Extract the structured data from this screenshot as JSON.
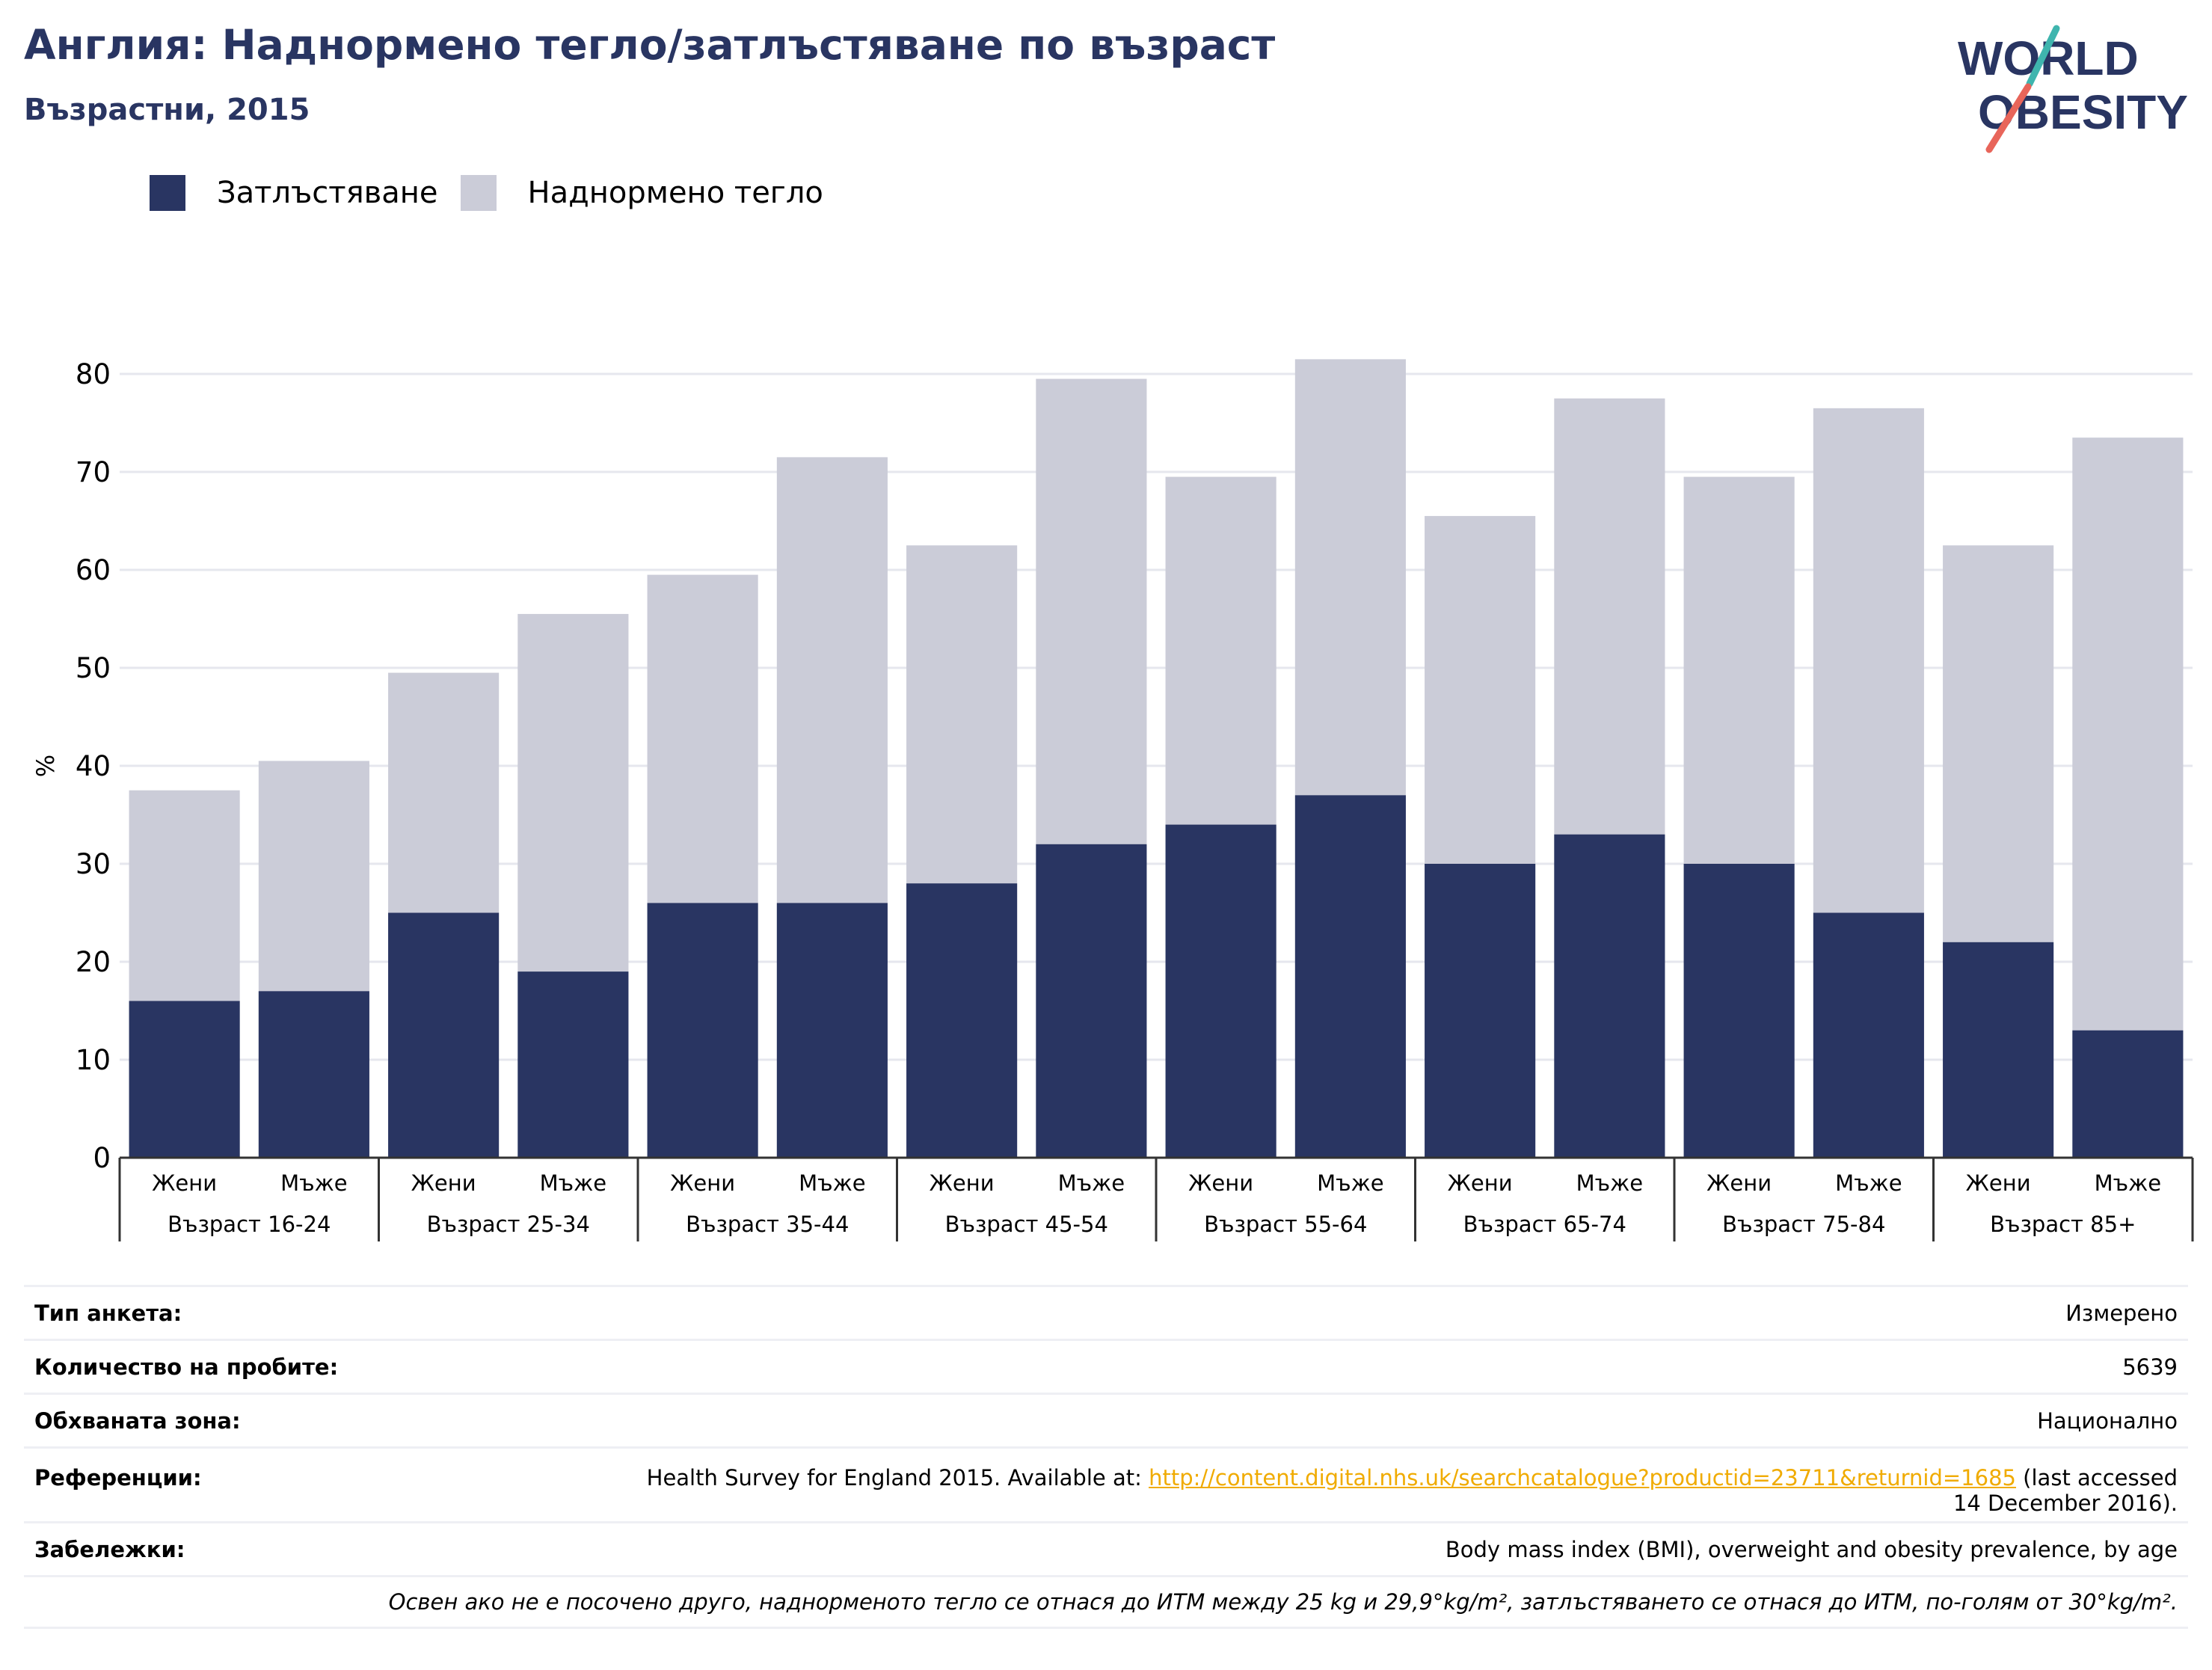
{
  "header": {
    "title": "Англия: Наднормено тегло/затлъстяване по възраст",
    "subtitle": "Възрастни, 2015"
  },
  "logo": {
    "line1": "WORLD",
    "line2": "OBESITY"
  },
  "colors": {
    "obesity": "#293562",
    "overweight": "#cbccd8",
    "title": "#293562",
    "link": "#f0ab00",
    "grid": "#e6e7ee",
    "logo_teal": "#3fb5ae",
    "logo_coral": "#e8655a"
  },
  "legend": {
    "obesity_label": "Затлъстяване",
    "overweight_label": "Наднормено тегло"
  },
  "chart_data": {
    "type": "bar",
    "stacked": true,
    "ylabel": "%",
    "ylim": [
      0,
      80
    ],
    "yticks": [
      0,
      10,
      20,
      30,
      40,
      50,
      60,
      70,
      80
    ],
    "grid": true,
    "legend_position": "top-left",
    "categories": [
      "Жени",
      "Мъже",
      "Жени",
      "Мъже",
      "Жени",
      "Мъже",
      "Жени",
      "Мъже",
      "Жени",
      "Мъже",
      "Жени",
      "Мъже",
      "Жени",
      "Мъже",
      "Жени",
      "Мъже"
    ],
    "groups": [
      "Възраст 16-24",
      "Възраст 25-34",
      "Възраст 35-44",
      "Възраст 45-54",
      "Възраст 55-64",
      "Възраст 65-74",
      "Възраст 75-84",
      "Възраст 85+"
    ],
    "series": [
      {
        "name": "Затлъстяване",
        "values": [
          16,
          17,
          25,
          19,
          26,
          26,
          28,
          32,
          34,
          37,
          30,
          33,
          30,
          25,
          22,
          13
        ]
      },
      {
        "name": "Наднормено тегло",
        "values": [
          21.5,
          23.5,
          24.5,
          36.5,
          33.5,
          45.5,
          34.5,
          47.5,
          35.5,
          44.5,
          35.5,
          44.5,
          39.5,
          51.5,
          40.5,
          60.5
        ]
      }
    ],
    "totals": [
      37.5,
      40.5,
      49.5,
      55.5,
      59.5,
      71.5,
      62.5,
      79.5,
      69.5,
      81.5,
      65.5,
      77.5,
      69.5,
      76.5,
      62.5,
      73.5
    ]
  },
  "info": {
    "survey_type_label": "Тип анкета:",
    "survey_type_value": "Измерено",
    "sample_size_label": "Количество на пробите:",
    "sample_size_value": "5639",
    "area_label": "Обхваната зона:",
    "area_value": "Национално",
    "references_label": "Референции:",
    "references_text_before": "Health Survey for England 2015. Available at: ",
    "references_link": "http://content.digital.nhs.uk/searchcatalogue?productid=23711&returnid=1685",
    "references_text_after": " (last accessed",
    "references_line2": "14 December 2016).",
    "notes_label": "Забележки:",
    "notes_value": "Body mass index (BMI), overweight and obesity prevalence, by age",
    "footnote": "Освен ако не е посочено друго, наднорменото тегло се отнася до ИТМ между 25 kg и 29,9°kg/m², затлъстяването се отнася до ИТМ, по-голям от 30°kg/m²."
  }
}
